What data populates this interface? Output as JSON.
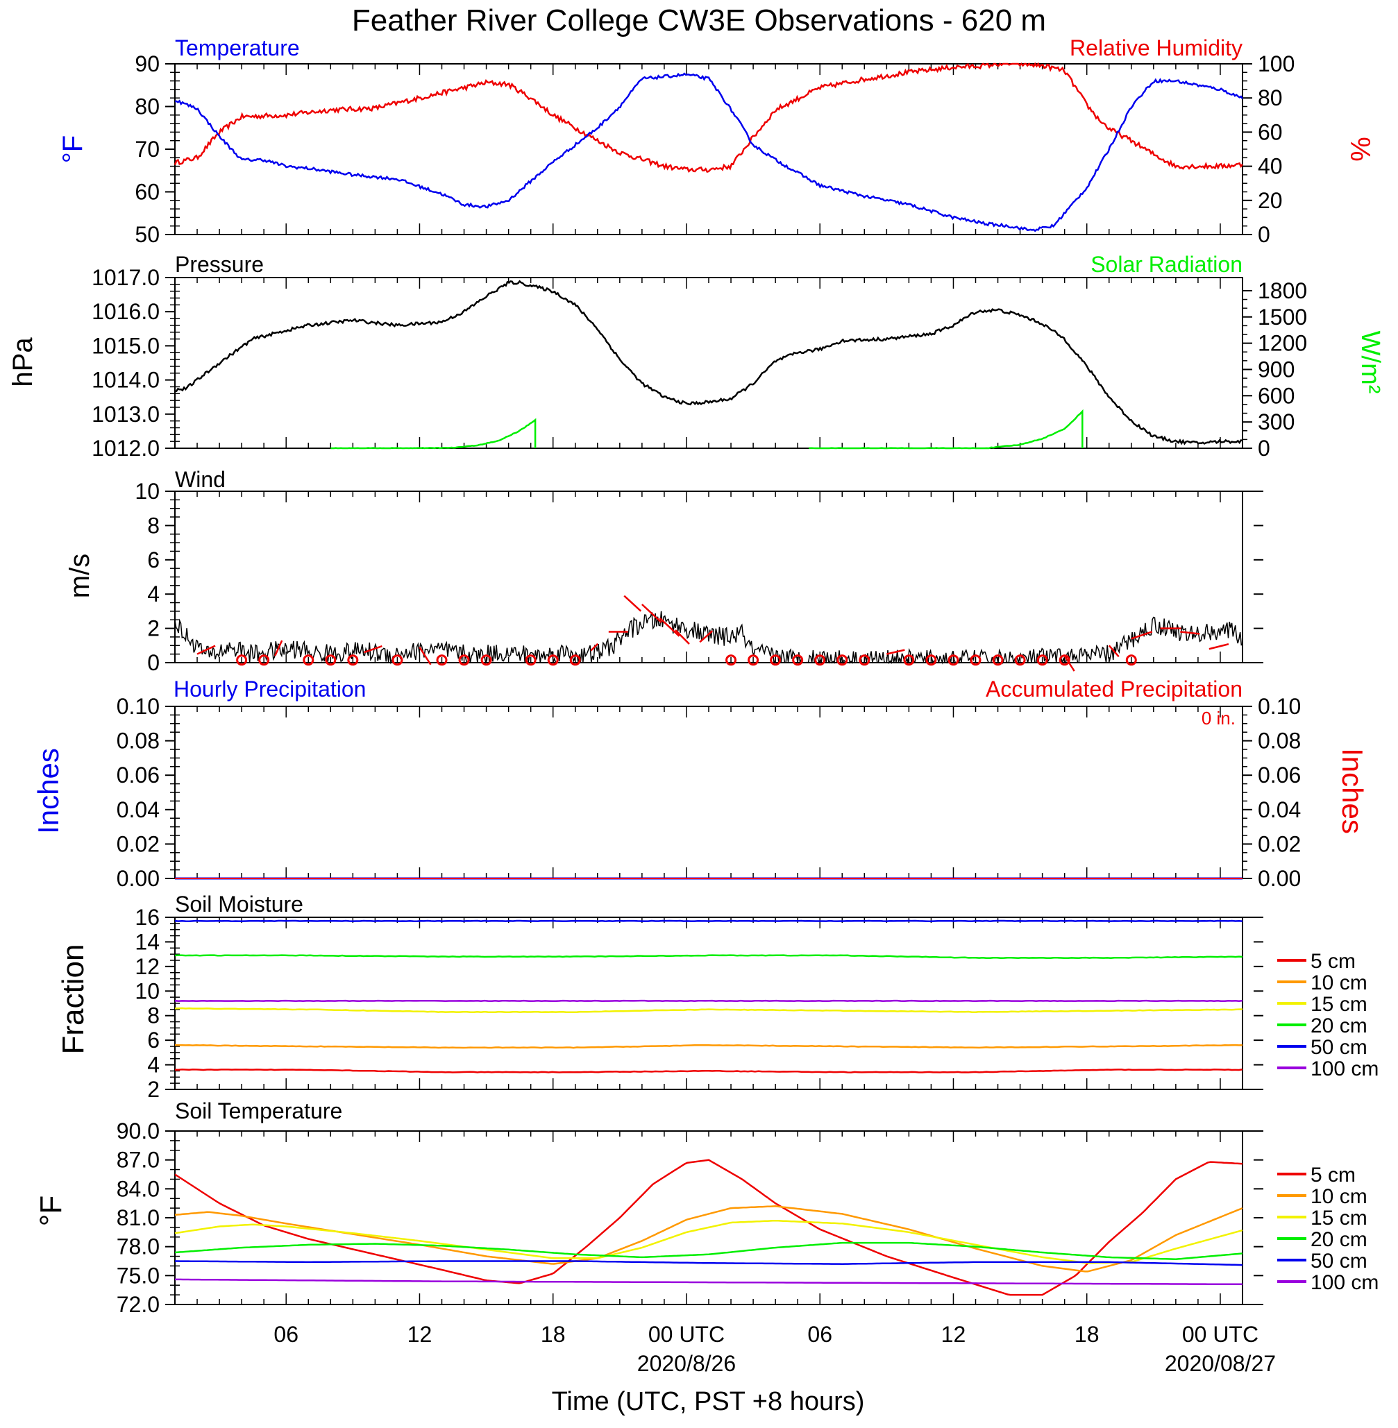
{
  "title": "Feather River College CW3E Observations - 620 m",
  "xlabel": "Time (UTC, PST +8 hours)",
  "time_axis": {
    "range_hours": [
      0,
      48
    ],
    "ticks": [
      {
        "h": 5,
        "label": "06"
      },
      {
        "h": 11,
        "label": "12"
      },
      {
        "h": 17,
        "label": "18"
      },
      {
        "h": 23,
        "label": "00 UTC"
      },
      {
        "h": 29,
        "label": "06"
      },
      {
        "h": 35,
        "label": "12"
      },
      {
        "h": 41,
        "label": "18"
      },
      {
        "h": 47,
        "label": "00 UTC"
      }
    ],
    "dates": [
      {
        "h": 23,
        "label": "2020/8/26"
      },
      {
        "h": 47,
        "label": "2020/08/27"
      }
    ]
  },
  "colors": {
    "blue": "#0000ee",
    "red": "#ee0000",
    "green": "#00ee00",
    "orange": "#ff9900",
    "yellow": "#f2f200",
    "purple": "#9900dd",
    "black": "#000000"
  },
  "chart_data": [
    {
      "id": "temp_rh",
      "type": "line",
      "left_label": "Temperature",
      "right_label": "Relative Humidity",
      "left_unit": "°F",
      "right_unit": "%",
      "ylim_left": [
        50,
        90
      ],
      "ylim_right": [
        0,
        100
      ],
      "left_ticks": [
        50,
        60,
        70,
        80,
        90
      ],
      "right_ticks": [
        0,
        20,
        40,
        60,
        80,
        100
      ],
      "temperature": {
        "x": [
          0,
          1,
          2,
          3,
          4,
          5,
          6,
          8,
          10,
          12,
          13,
          14,
          15,
          17,
          19,
          20,
          21,
          22,
          23,
          24,
          24.5,
          25.3,
          26,
          27,
          29,
          31,
          33,
          35,
          36.5,
          37.5,
          38.5,
          39.5,
          41,
          42,
          43,
          44,
          45,
          46,
          47,
          48
        ],
        "y": [
          81.5,
          79.5,
          73,
          67.5,
          67.5,
          66,
          65.5,
          64,
          63,
          59.5,
          57,
          56.5,
          58,
          67,
          75,
          80,
          86.5,
          87,
          87.5,
          86.5,
          83,
          77,
          71,
          67.5,
          61.5,
          59,
          57,
          54,
          52.5,
          52,
          51,
          52,
          61,
          70,
          80,
          86,
          86,
          85,
          84,
          82
        ]
      },
      "humidity": {
        "x": [
          0,
          1,
          2,
          3,
          5,
          7,
          9,
          11,
          13,
          14,
          15,
          16,
          17,
          19,
          20,
          21,
          22,
          23,
          24,
          25,
          26,
          27,
          29,
          31,
          33,
          35,
          36.5,
          37,
          38,
          39,
          40,
          41,
          41.5,
          42,
          43,
          44,
          45,
          46,
          47,
          48
        ],
        "y": [
          42,
          45,
          60,
          69,
          70,
          73,
          74,
          80,
          86,
          89,
          88,
          80,
          70,
          55,
          48,
          44,
          40,
          38,
          38,
          40,
          57,
          73,
          86,
          91,
          95,
          98,
          99,
          100,
          100,
          99,
          96,
          76,
          68,
          62,
          55,
          47,
          40,
          40,
          40,
          41
        ]
      }
    },
    {
      "id": "pressure_solar",
      "type": "line",
      "left_label": "Pressure",
      "right_label": "Solar Radiation",
      "left_unit": "hPa",
      "right_unit": "W/m²",
      "ylim_left": [
        1012,
        1017
      ],
      "ylim_right": [
        0,
        1950
      ],
      "left_ticks": [
        "1012.0",
        "1013.0",
        "1014.0",
        "1015.0",
        "1016.0",
        "1017.0"
      ],
      "right_ticks": [
        0,
        300,
        600,
        900,
        1200,
        1500,
        1800
      ],
      "pressure": {
        "x": [
          0,
          0.5,
          2,
          3.5,
          5,
          6,
          8,
          10,
          12,
          13,
          14,
          15,
          15.5,
          17,
          18,
          19,
          20,
          21,
          22,
          23,
          24,
          25,
          26,
          27,
          28,
          29,
          30,
          32,
          34,
          35,
          36,
          37,
          38,
          39,
          40,
          41,
          42,
          43,
          44,
          45,
          46,
          47,
          48
        ],
        "y": [
          1013.7,
          1013.75,
          1014.5,
          1015.2,
          1015.45,
          1015.6,
          1015.75,
          1015.6,
          1015.7,
          1016.0,
          1016.45,
          1016.85,
          1016.85,
          1016.6,
          1016.2,
          1015.5,
          1014.6,
          1013.9,
          1013.5,
          1013.3,
          1013.35,
          1013.45,
          1013.9,
          1014.55,
          1014.8,
          1014.9,
          1015.15,
          1015.2,
          1015.35,
          1015.6,
          1016.0,
          1016.05,
          1015.9,
          1015.65,
          1015.2,
          1014.4,
          1013.5,
          1012.8,
          1012.35,
          1012.2,
          1012.15,
          1012.2,
          1012.2
        ]
      },
      "solar": {
        "x": [
          7,
          11,
          12.5,
          13.5,
          14.5,
          15.5,
          16.2,
          16.2,
          28.5,
          36.5,
          38,
          39,
          40,
          40.8,
          40.8
        ],
        "y": [
          0,
          0,
          5,
          30,
          80,
          200,
          320,
          0,
          0,
          0,
          40,
          110,
          220,
          420,
          0
        ]
      }
    },
    {
      "id": "wind",
      "type": "line",
      "label": "Wind",
      "unit": "m/s",
      "ylim": [
        0,
        10
      ],
      "ticks": [
        0,
        2,
        4,
        6,
        8,
        10
      ],
      "speed": {
        "x": [
          0,
          0.3,
          0.8,
          1.5,
          2.5,
          3.5,
          4.5,
          5.5,
          6.5,
          7.5,
          8.5,
          9.5,
          10.5,
          11.5,
          12.5,
          13.5,
          14.5,
          15.5,
          16.5,
          17.5,
          18.5,
          19.2,
          19.7,
          20.3,
          21,
          21.8,
          22.5,
          23.2,
          24,
          24.8,
          25.5,
          26,
          27,
          28,
          29,
          30,
          31,
          32,
          33,
          34,
          35,
          36,
          37,
          38,
          39,
          40,
          41,
          42,
          43,
          43.5,
          44,
          44.8,
          45.5,
          46.2,
          47,
          47.6,
          48
        ],
        "y": [
          2.5,
          1.8,
          1.2,
          0.4,
          0.9,
          0.5,
          0.7,
          0.8,
          0.5,
          0.6,
          0.7,
          0.5,
          0.6,
          0.8,
          0.6,
          0.4,
          0.6,
          0.5,
          0.4,
          0.6,
          0.4,
          0.7,
          1.0,
          1.8,
          2.3,
          2.5,
          2.2,
          1.9,
          1.6,
          1.5,
          1.7,
          0.6,
          0.4,
          0.2,
          0.3,
          0.2,
          0.2,
          0.2,
          0.2,
          0.2,
          0.2,
          0.2,
          0.2,
          0.2,
          0.3,
          0.3,
          0.4,
          0.5,
          1.3,
          1.8,
          2.2,
          2.0,
          1.6,
          1.7,
          1.9,
          1.8,
          1.4
        ]
      },
      "calm_hours": [
        3,
        4,
        6,
        7,
        8,
        10,
        12,
        13,
        14,
        16,
        17,
        18,
        25,
        26,
        27,
        28,
        29,
        30,
        31,
        33,
        34,
        35,
        36,
        37,
        38,
        39,
        40,
        43
      ],
      "barbs": [
        {
          "h": 1,
          "v": 0.5,
          "dx": 26,
          "dy": -12
        },
        {
          "h": 4.5,
          "v": 0.4,
          "dx": 10,
          "dy": -22
        },
        {
          "h": 8.5,
          "v": 0.6,
          "dx": 26,
          "dy": -9
        },
        {
          "h": 11,
          "v": 0.9,
          "dx": 16,
          "dy": 25
        },
        {
          "h": 18.7,
          "v": 0.7,
          "dx": 10,
          "dy": -10
        },
        {
          "h": 19.5,
          "v": 1.8,
          "dx": 28,
          "dy": 0
        },
        {
          "h": 20.2,
          "v": 3.9,
          "dx": 24,
          "dy": 22
        },
        {
          "h": 21.0,
          "v": 3.4,
          "dx": 28,
          "dy": 26
        },
        {
          "h": 21.8,
          "v": 2.6,
          "dx": 28,
          "dy": 26
        },
        {
          "h": 22.5,
          "v": 1.9,
          "dx": 20,
          "dy": 20
        },
        {
          "h": 23.6,
          "v": 1.2,
          "dx": 18,
          "dy": -16
        },
        {
          "h": 32,
          "v": 0.5,
          "dx": 26,
          "dy": -6
        },
        {
          "h": 40,
          "v": 0.4,
          "dx": 14,
          "dy": 22
        },
        {
          "h": 42.0,
          "v": 1.0,
          "dx": 14,
          "dy": 16
        },
        {
          "h": 43,
          "v": 1.4,
          "dx": 30,
          "dy": -10
        },
        {
          "h": 44.3,
          "v": 2.0,
          "dx": 30,
          "dy": 0
        },
        {
          "h": 45.2,
          "v": 1.8,
          "dx": 28,
          "dy": 3
        },
        {
          "h": 46.5,
          "v": 0.8,
          "dx": 28,
          "dy": -7
        }
      ]
    },
    {
      "id": "precip",
      "type": "line",
      "left_label": "Hourly Precipitation",
      "right_label": "Accumulated Precipitation",
      "accumulated_note": "0 in.",
      "left_unit": "Inches",
      "right_unit": "Inches",
      "ylim": [
        0,
        0.1
      ],
      "ticks": [
        "0.00",
        "0.02",
        "0.04",
        "0.06",
        "0.08",
        "0.10"
      ],
      "hourly": {
        "x": [
          0,
          48
        ],
        "y": [
          0,
          0
        ]
      },
      "accumulated": {
        "x": [
          0,
          48
        ],
        "y": [
          0,
          0
        ]
      }
    },
    {
      "id": "soil_moisture",
      "type": "line",
      "label": "Soil Moisture",
      "unit": "Fraction",
      "ylim": [
        2,
        16
      ],
      "ticks": [
        2,
        4,
        6,
        8,
        10,
        12,
        14,
        16
      ],
      "legend": [
        "5 cm",
        "10 cm",
        "15 cm",
        "20 cm",
        "50 cm",
        "100 cm"
      ],
      "series": [
        {
          "name": "5 cm",
          "color": "#ee0000",
          "values": [
            3.6,
            3.6,
            3.4,
            3.4,
            3.5,
            3.4,
            3.4,
            3.6,
            3.6
          ]
        },
        {
          "name": "10 cm",
          "color": "#ff9900",
          "values": [
            5.6,
            5.5,
            5.4,
            5.4,
            5.6,
            5.5,
            5.4,
            5.5,
            5.6
          ]
        },
        {
          "name": "15 cm",
          "color": "#f2f200",
          "values": [
            8.6,
            8.5,
            8.3,
            8.3,
            8.5,
            8.4,
            8.3,
            8.4,
            8.5
          ]
        },
        {
          "name": "20 cm",
          "color": "#00ee00",
          "values": [
            12.9,
            12.9,
            12.8,
            12.8,
            12.9,
            12.9,
            12.7,
            12.7,
            12.8
          ]
        },
        {
          "name": "50 cm",
          "color": "#0000ee",
          "values": [
            15.7,
            15.7,
            15.7,
            15.7,
            15.7,
            15.7,
            15.7,
            15.7,
            15.7
          ]
        },
        {
          "name": "100 cm",
          "color": "#9900dd",
          "values": [
            9.2,
            9.2,
            9.2,
            9.2,
            9.2,
            9.2,
            9.2,
            9.2,
            9.2
          ]
        }
      ],
      "x": [
        0,
        6,
        12,
        18,
        24,
        30,
        36,
        42,
        48
      ]
    },
    {
      "id": "soil_temp",
      "type": "line",
      "label": "Soil Temperature",
      "unit": "°F",
      "ylim": [
        72,
        90
      ],
      "ticks": [
        "72.0",
        "75.0",
        "78.0",
        "81.0",
        "84.0",
        "87.0",
        "90.0"
      ],
      "legend": [
        "5 cm",
        "10 cm",
        "15 cm",
        "20 cm",
        "50 cm",
        "100 cm"
      ],
      "series": [
        {
          "name": "5 cm",
          "color": "#ee0000",
          "x": [
            0,
            2,
            4,
            6,
            9,
            12,
            14,
            15.5,
            17,
            18.5,
            20,
            21.5,
            23,
            24,
            25.5,
            27,
            29,
            32,
            35,
            37.5,
            39,
            40.5,
            42,
            43.5,
            45,
            46.5,
            48
          ],
          "y": [
            85.5,
            82.5,
            80.2,
            78.8,
            77.2,
            75.6,
            74.5,
            74.2,
            75.2,
            78.0,
            81.0,
            84.5,
            86.7,
            87.0,
            85.0,
            82.5,
            79.8,
            77.0,
            74.8,
            73.0,
            73.0,
            75.0,
            78.5,
            81.5,
            85.0,
            86.8,
            86.6
          ]
        },
        {
          "name": "10 cm",
          "color": "#ff9900",
          "x": [
            0,
            1.5,
            3,
            5,
            8,
            11,
            14,
            17,
            19,
            21,
            23,
            25,
            27,
            30,
            33,
            36,
            39,
            41,
            43,
            45,
            48
          ],
          "y": [
            81.3,
            81.6,
            81.2,
            80.4,
            79.3,
            78.2,
            77.0,
            76.2,
            76.8,
            78.6,
            80.8,
            82.0,
            82.2,
            81.4,
            79.8,
            77.8,
            76.0,
            75.4,
            76.6,
            79.2,
            82.0
          ]
        },
        {
          "name": "15 cm",
          "color": "#f2f200",
          "x": [
            0,
            2,
            3.5,
            5,
            8,
            11,
            14,
            17,
            19,
            21,
            23,
            25,
            27,
            30,
            33,
            36,
            39,
            41,
            43,
            45,
            48
          ],
          "y": [
            79.4,
            80.1,
            80.3,
            80.1,
            79.4,
            78.6,
            77.7,
            76.8,
            76.8,
            77.9,
            79.5,
            80.5,
            80.7,
            80.4,
            79.5,
            78.2,
            76.9,
            76.3,
            76.4,
            77.8,
            79.7
          ]
        },
        {
          "name": "20 cm",
          "color": "#00ee00",
          "x": [
            0,
            3,
            6,
            9,
            12,
            15,
            18,
            21,
            24,
            27,
            30,
            33,
            36,
            39,
            42,
            45,
            48
          ],
          "y": [
            77.4,
            77.9,
            78.2,
            78.3,
            78.1,
            77.7,
            77.2,
            76.9,
            77.2,
            77.9,
            78.4,
            78.4,
            78.0,
            77.4,
            76.9,
            76.7,
            77.3
          ]
        },
        {
          "name": "50 cm",
          "color": "#0000ee",
          "x": [
            0,
            6,
            12,
            18,
            24,
            30,
            36,
            42,
            48
          ],
          "y": [
            76.5,
            76.4,
            76.5,
            76.5,
            76.3,
            76.2,
            76.4,
            76.4,
            76.1
          ]
        },
        {
          "name": "100 cm",
          "color": "#9900dd",
          "x": [
            0,
            12,
            24,
            36,
            48
          ],
          "y": [
            74.6,
            74.4,
            74.3,
            74.2,
            74.1
          ]
        }
      ]
    }
  ]
}
